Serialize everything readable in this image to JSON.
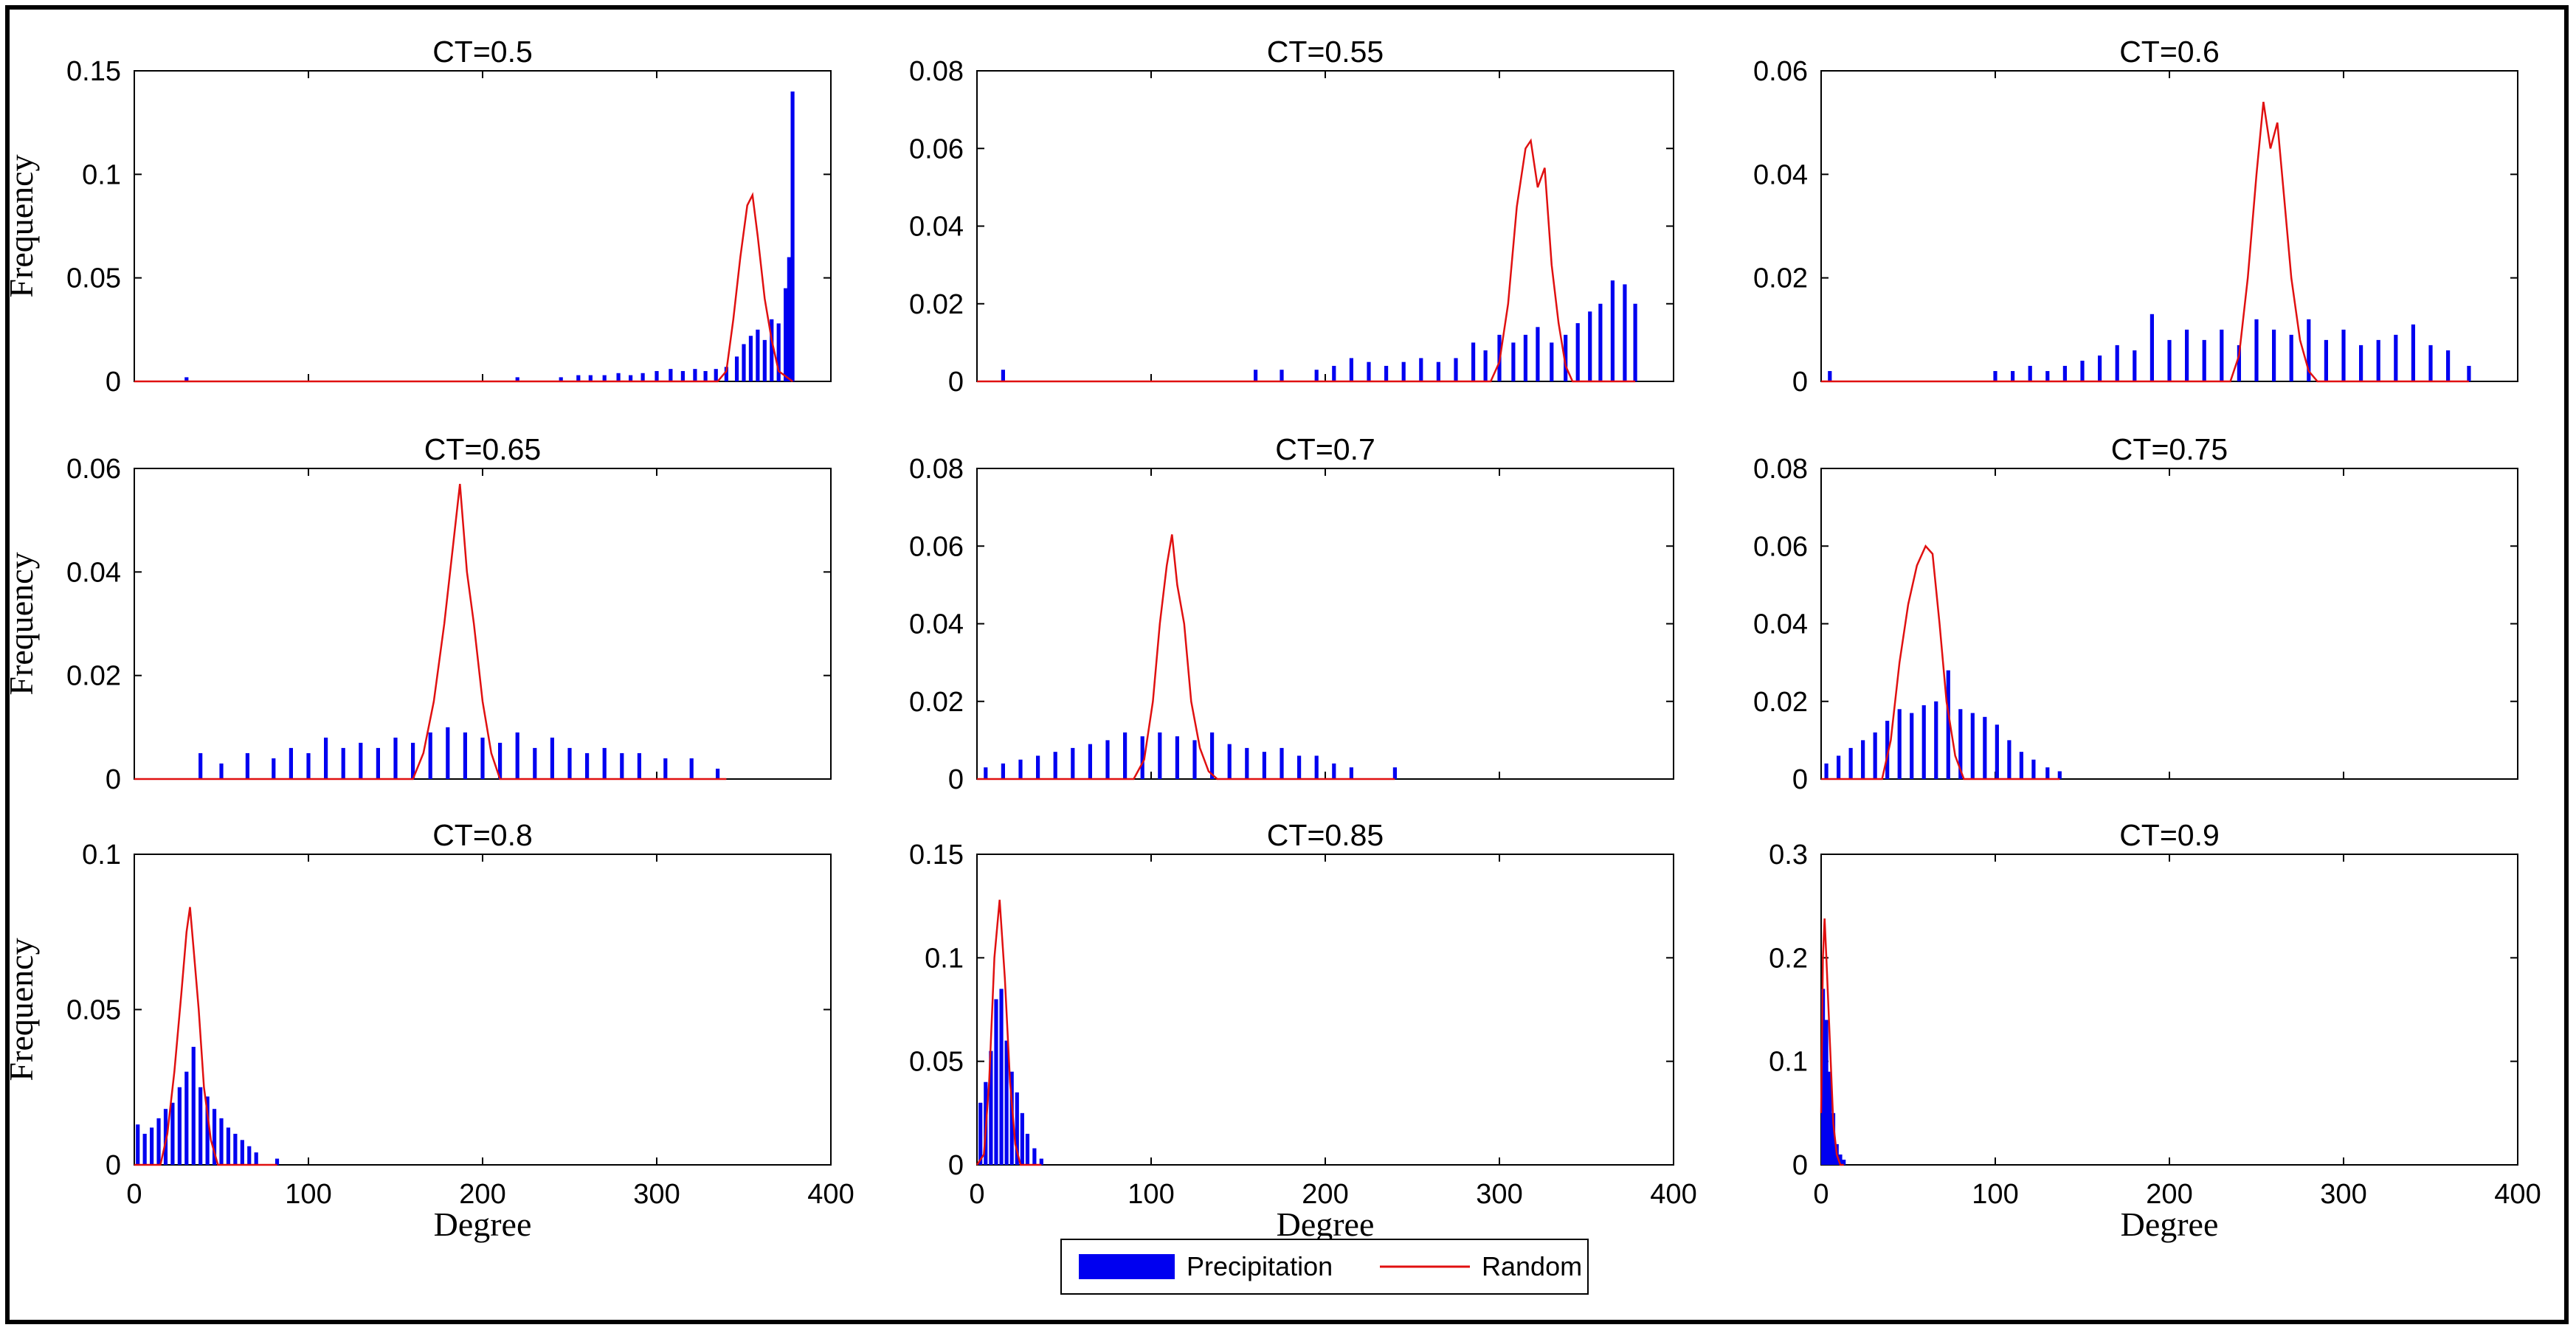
{
  "colors": {
    "precipitation": "#0000f0",
    "random": "#e01010",
    "axis": "#000000",
    "border": "#000000"
  },
  "legend": {
    "precipitation_label": "Precipitation",
    "random_label": "Random"
  },
  "chart_data": [
    {
      "type": "bar",
      "title": "CT=0.5",
      "xlabel": "",
      "ylabel": "Frequency",
      "xlim": [
        0,
        400
      ],
      "ylim": [
        0,
        0.15
      ],
      "xticks": [],
      "yticks": [
        "0",
        "0.05",
        "0.1",
        "0.15"
      ],
      "ytick_values": [
        0,
        0.05,
        0.1,
        0.15
      ],
      "precip_bars": [
        [
          30,
          0.002
        ],
        [
          220,
          0.002
        ],
        [
          245,
          0.002
        ],
        [
          255,
          0.003
        ],
        [
          262,
          0.003
        ],
        [
          270,
          0.003
        ],
        [
          278,
          0.004
        ],
        [
          285,
          0.003
        ],
        [
          292,
          0.004
        ],
        [
          300,
          0.005
        ],
        [
          308,
          0.006
        ],
        [
          315,
          0.005
        ],
        [
          322,
          0.006
        ],
        [
          328,
          0.005
        ],
        [
          334,
          0.006
        ],
        [
          340,
          0.007
        ],
        [
          346,
          0.012
        ],
        [
          350,
          0.018
        ],
        [
          354,
          0.022
        ],
        [
          358,
          0.025
        ],
        [
          362,
          0.02
        ],
        [
          366,
          0.03
        ],
        [
          370,
          0.028
        ],
        [
          374,
          0.045
        ],
        [
          376,
          0.06
        ],
        [
          378,
          0.14
        ]
      ],
      "random_line": [
        [
          0,
          0
        ],
        [
          335,
          0
        ],
        [
          340,
          0.005
        ],
        [
          344,
          0.03
        ],
        [
          348,
          0.06
        ],
        [
          352,
          0.085
        ],
        [
          355,
          0.09
        ],
        [
          358,
          0.07
        ],
        [
          362,
          0.04
        ],
        [
          366,
          0.02
        ],
        [
          370,
          0.005
        ],
        [
          378,
          0
        ]
      ]
    },
    {
      "type": "bar",
      "title": "CT=0.55",
      "xlabel": "",
      "ylabel": "",
      "xlim": [
        0,
        400
      ],
      "ylim": [
        0,
        0.08
      ],
      "xticks": [],
      "yticks": [
        "0",
        "0.02",
        "0.04",
        "0.06",
        "0.08"
      ],
      "ytick_values": [
        0,
        0.02,
        0.04,
        0.06,
        0.08
      ],
      "precip_bars": [
        [
          15,
          0.003
        ],
        [
          160,
          0.003
        ],
        [
          175,
          0.003
        ],
        [
          195,
          0.003
        ],
        [
          205,
          0.004
        ],
        [
          215,
          0.006
        ],
        [
          225,
          0.005
        ],
        [
          235,
          0.004
        ],
        [
          245,
          0.005
        ],
        [
          255,
          0.006
        ],
        [
          265,
          0.005
        ],
        [
          275,
          0.006
        ],
        [
          285,
          0.01
        ],
        [
          292,
          0.008
        ],
        [
          300,
          0.012
        ],
        [
          308,
          0.01
        ],
        [
          315,
          0.012
        ],
        [
          322,
          0.014
        ],
        [
          330,
          0.01
        ],
        [
          338,
          0.012
        ],
        [
          345,
          0.015
        ],
        [
          352,
          0.018
        ],
        [
          358,
          0.02
        ],
        [
          365,
          0.026
        ],
        [
          372,
          0.025
        ],
        [
          378,
          0.02
        ]
      ],
      "random_line": [
        [
          0,
          0
        ],
        [
          295,
          0
        ],
        [
          300,
          0.005
        ],
        [
          305,
          0.02
        ],
        [
          310,
          0.045
        ],
        [
          315,
          0.06
        ],
        [
          318,
          0.062
        ],
        [
          322,
          0.05
        ],
        [
          326,
          0.055
        ],
        [
          330,
          0.03
        ],
        [
          334,
          0.015
        ],
        [
          338,
          0.004
        ],
        [
          342,
          0
        ],
        [
          378,
          0
        ]
      ]
    },
    {
      "type": "bar",
      "title": "CT=0.6",
      "xlabel": "",
      "ylabel": "",
      "xlim": [
        0,
        400
      ],
      "ylim": [
        0,
        0.06
      ],
      "xticks": [],
      "yticks": [
        "0",
        "0.02",
        "0.04",
        "0.06"
      ],
      "ytick_values": [
        0,
        0.02,
        0.04,
        0.06
      ],
      "precip_bars": [
        [
          5,
          0.002
        ],
        [
          100,
          0.002
        ],
        [
          110,
          0.002
        ],
        [
          120,
          0.003
        ],
        [
          130,
          0.002
        ],
        [
          140,
          0.003
        ],
        [
          150,
          0.004
        ],
        [
          160,
          0.005
        ],
        [
          170,
          0.007
        ],
        [
          180,
          0.006
        ],
        [
          190,
          0.013
        ],
        [
          200,
          0.008
        ],
        [
          210,
          0.01
        ],
        [
          220,
          0.008
        ],
        [
          230,
          0.01
        ],
        [
          240,
          0.007
        ],
        [
          250,
          0.012
        ],
        [
          260,
          0.01
        ],
        [
          270,
          0.009
        ],
        [
          280,
          0.012
        ],
        [
          290,
          0.008
        ],
        [
          300,
          0.01
        ],
        [
          310,
          0.007
        ],
        [
          320,
          0.008
        ],
        [
          330,
          0.009
        ],
        [
          340,
          0.011
        ],
        [
          350,
          0.007
        ],
        [
          360,
          0.006
        ],
        [
          372,
          0.003
        ]
      ],
      "random_line": [
        [
          0,
          0
        ],
        [
          235,
          0
        ],
        [
          240,
          0.005
        ],
        [
          245,
          0.02
        ],
        [
          250,
          0.04
        ],
        [
          254,
          0.054
        ],
        [
          258,
          0.045
        ],
        [
          262,
          0.05
        ],
        [
          266,
          0.035
        ],
        [
          270,
          0.02
        ],
        [
          275,
          0.008
        ],
        [
          280,
          0.002
        ],
        [
          285,
          0
        ],
        [
          372,
          0
        ]
      ]
    },
    {
      "type": "bar",
      "title": "CT=0.65",
      "xlabel": "",
      "ylabel": "Frequency",
      "xlim": [
        0,
        400
      ],
      "ylim": [
        0,
        0.06
      ],
      "xticks": [],
      "yticks": [
        "0",
        "0.02",
        "0.04",
        "0.06"
      ],
      "ytick_values": [
        0,
        0.02,
        0.04,
        0.06
      ],
      "precip_bars": [
        [
          38,
          0.005
        ],
        [
          50,
          0.003
        ],
        [
          65,
          0.005
        ],
        [
          80,
          0.004
        ],
        [
          90,
          0.006
        ],
        [
          100,
          0.005
        ],
        [
          110,
          0.008
        ],
        [
          120,
          0.006
        ],
        [
          130,
          0.007
        ],
        [
          140,
          0.006
        ],
        [
          150,
          0.008
        ],
        [
          160,
          0.007
        ],
        [
          170,
          0.009
        ],
        [
          180,
          0.01
        ],
        [
          190,
          0.009
        ],
        [
          200,
          0.008
        ],
        [
          210,
          0.007
        ],
        [
          220,
          0.009
        ],
        [
          230,
          0.006
        ],
        [
          240,
          0.008
        ],
        [
          250,
          0.006
        ],
        [
          260,
          0.005
        ],
        [
          270,
          0.006
        ],
        [
          280,
          0.005
        ],
        [
          290,
          0.005
        ],
        [
          305,
          0.004
        ],
        [
          320,
          0.004
        ],
        [
          335,
          0.002
        ]
      ],
      "random_line": [
        [
          0,
          0
        ],
        [
          160,
          0
        ],
        [
          166,
          0.005
        ],
        [
          172,
          0.015
        ],
        [
          178,
          0.03
        ],
        [
          183,
          0.045
        ],
        [
          187,
          0.057
        ],
        [
          191,
          0.04
        ],
        [
          195,
          0.03
        ],
        [
          200,
          0.015
        ],
        [
          205,
          0.005
        ],
        [
          210,
          0
        ],
        [
          340,
          0
        ]
      ]
    },
    {
      "type": "bar",
      "title": "CT=0.7",
      "xlabel": "",
      "ylabel": "",
      "xlim": [
        0,
        400
      ],
      "ylim": [
        0,
        0.08
      ],
      "xticks": [],
      "yticks": [
        "0",
        "0.02",
        "0.04",
        "0.06",
        "0.08"
      ],
      "ytick_values": [
        0,
        0.02,
        0.04,
        0.06,
        0.08
      ],
      "precip_bars": [
        [
          5,
          0.003
        ],
        [
          15,
          0.004
        ],
        [
          25,
          0.005
        ],
        [
          35,
          0.006
        ],
        [
          45,
          0.007
        ],
        [
          55,
          0.008
        ],
        [
          65,
          0.009
        ],
        [
          75,
          0.01
        ],
        [
          85,
          0.012
        ],
        [
          95,
          0.011
        ],
        [
          105,
          0.012
        ],
        [
          115,
          0.011
        ],
        [
          125,
          0.01
        ],
        [
          135,
          0.012
        ],
        [
          145,
          0.009
        ],
        [
          155,
          0.008
        ],
        [
          165,
          0.007
        ],
        [
          175,
          0.008
        ],
        [
          185,
          0.006
        ],
        [
          195,
          0.006
        ],
        [
          205,
          0.004
        ],
        [
          215,
          0.003
        ],
        [
          240,
          0.003
        ]
      ],
      "random_line": [
        [
          0,
          0
        ],
        [
          90,
          0
        ],
        [
          96,
          0.005
        ],
        [
          101,
          0.02
        ],
        [
          105,
          0.04
        ],
        [
          109,
          0.055
        ],
        [
          112,
          0.063
        ],
        [
          115,
          0.05
        ],
        [
          119,
          0.04
        ],
        [
          123,
          0.02
        ],
        [
          128,
          0.008
        ],
        [
          133,
          0.002
        ],
        [
          138,
          0
        ],
        [
          240,
          0
        ]
      ]
    },
    {
      "type": "bar",
      "title": "CT=0.75",
      "xlabel": "",
      "ylabel": "",
      "xlim": [
        0,
        400
      ],
      "ylim": [
        0,
        0.08
      ],
      "xticks": [],
      "yticks": [
        "0",
        "0.02",
        "0.04",
        "0.06",
        "0.08"
      ],
      "ytick_values": [
        0,
        0.02,
        0.04,
        0.06,
        0.08
      ],
      "precip_bars": [
        [
          3,
          0.004
        ],
        [
          10,
          0.006
        ],
        [
          17,
          0.008
        ],
        [
          24,
          0.01
        ],
        [
          31,
          0.012
        ],
        [
          38,
          0.015
        ],
        [
          45,
          0.018
        ],
        [
          52,
          0.017
        ],
        [
          59,
          0.019
        ],
        [
          66,
          0.02
        ],
        [
          73,
          0.028
        ],
        [
          80,
          0.018
        ],
        [
          87,
          0.017
        ],
        [
          94,
          0.016
        ],
        [
          101,
          0.014
        ],
        [
          108,
          0.01
        ],
        [
          115,
          0.007
        ],
        [
          122,
          0.005
        ],
        [
          130,
          0.003
        ],
        [
          137,
          0.002
        ]
      ],
      "random_line": [
        [
          0,
          0
        ],
        [
          35,
          0
        ],
        [
          40,
          0.01
        ],
        [
          45,
          0.03
        ],
        [
          50,
          0.045
        ],
        [
          55,
          0.055
        ],
        [
          60,
          0.06
        ],
        [
          64,
          0.058
        ],
        [
          68,
          0.04
        ],
        [
          72,
          0.02
        ],
        [
          77,
          0.006
        ],
        [
          82,
          0
        ],
        [
          137,
          0
        ]
      ]
    },
    {
      "type": "bar",
      "title": "CT=0.8",
      "xlabel": "Degree",
      "ylabel": "Frequency",
      "xlim": [
        0,
        400
      ],
      "ylim": [
        0,
        0.1
      ],
      "xticks": [
        "0",
        "100",
        "200",
        "300",
        "400"
      ],
      "yticks": [
        "0",
        "0.05",
        "0.1"
      ],
      "ytick_values": [
        0,
        0.05,
        0.1
      ],
      "precip_bars": [
        [
          2,
          0.013
        ],
        [
          6,
          0.01
        ],
        [
          10,
          0.012
        ],
        [
          14,
          0.015
        ],
        [
          18,
          0.018
        ],
        [
          22,
          0.02
        ],
        [
          26,
          0.025
        ],
        [
          30,
          0.03
        ],
        [
          34,
          0.038
        ],
        [
          38,
          0.025
        ],
        [
          42,
          0.022
        ],
        [
          46,
          0.018
        ],
        [
          50,
          0.015
        ],
        [
          54,
          0.012
        ],
        [
          58,
          0.01
        ],
        [
          62,
          0.008
        ],
        [
          66,
          0.006
        ],
        [
          70,
          0.004
        ],
        [
          82,
          0.002
        ]
      ],
      "random_line": [
        [
          0,
          0
        ],
        [
          15,
          0
        ],
        [
          19,
          0.01
        ],
        [
          23,
          0.03
        ],
        [
          27,
          0.055
        ],
        [
          30,
          0.075
        ],
        [
          32,
          0.083
        ],
        [
          34,
          0.07
        ],
        [
          37,
          0.05
        ],
        [
          40,
          0.025
        ],
        [
          44,
          0.008
        ],
        [
          48,
          0
        ],
        [
          82,
          0
        ]
      ]
    },
    {
      "type": "bar",
      "title": "CT=0.85",
      "xlabel": "Degree",
      "ylabel": "",
      "xlim": [
        0,
        400
      ],
      "ylim": [
        0,
        0.15
      ],
      "xticks": [
        "0",
        "100",
        "200",
        "300",
        "400"
      ],
      "yticks": [
        "0",
        "0.05",
        "0.1",
        "0.15"
      ],
      "ytick_values": [
        0,
        0.05,
        0.1,
        0.15
      ],
      "precip_bars": [
        [
          2,
          0.03
        ],
        [
          5,
          0.04
        ],
        [
          8,
          0.055
        ],
        [
          11,
          0.08
        ],
        [
          14,
          0.085
        ],
        [
          17,
          0.06
        ],
        [
          20,
          0.045
        ],
        [
          23,
          0.035
        ],
        [
          26,
          0.025
        ],
        [
          29,
          0.015
        ],
        [
          33,
          0.008
        ],
        [
          37,
          0.003
        ]
      ],
      "random_line": [
        [
          0,
          0
        ],
        [
          4,
          0.005
        ],
        [
          7,
          0.04
        ],
        [
          10,
          0.1
        ],
        [
          13,
          0.128
        ],
        [
          16,
          0.09
        ],
        [
          19,
          0.04
        ],
        [
          22,
          0.01
        ],
        [
          25,
          0
        ],
        [
          37,
          0
        ]
      ]
    },
    {
      "type": "bar",
      "title": "CT=0.9",
      "xlabel": "Degree",
      "ylabel": "",
      "xlim": [
        0,
        400
      ],
      "ylim": [
        0,
        0.3
      ],
      "xticks": [
        "0",
        "100",
        "200",
        "300",
        "400"
      ],
      "yticks": [
        "0",
        "0.1",
        "0.2",
        "0.3"
      ],
      "ytick_values": [
        0,
        0.1,
        0.2,
        0.3
      ],
      "precip_bars": [
        [
          1,
          0.17
        ],
        [
          3,
          0.14
        ],
        [
          5,
          0.09
        ],
        [
          7,
          0.05
        ],
        [
          9,
          0.02
        ],
        [
          11,
          0.01
        ],
        [
          13,
          0.005
        ]
      ],
      "random_line": [
        [
          0,
          0.05
        ],
        [
          1,
          0.2
        ],
        [
          2,
          0.238
        ],
        [
          3,
          0.2
        ],
        [
          5,
          0.12
        ],
        [
          7,
          0.04
        ],
        [
          9,
          0.01
        ],
        [
          11,
          0
        ],
        [
          13,
          0
        ]
      ]
    }
  ]
}
